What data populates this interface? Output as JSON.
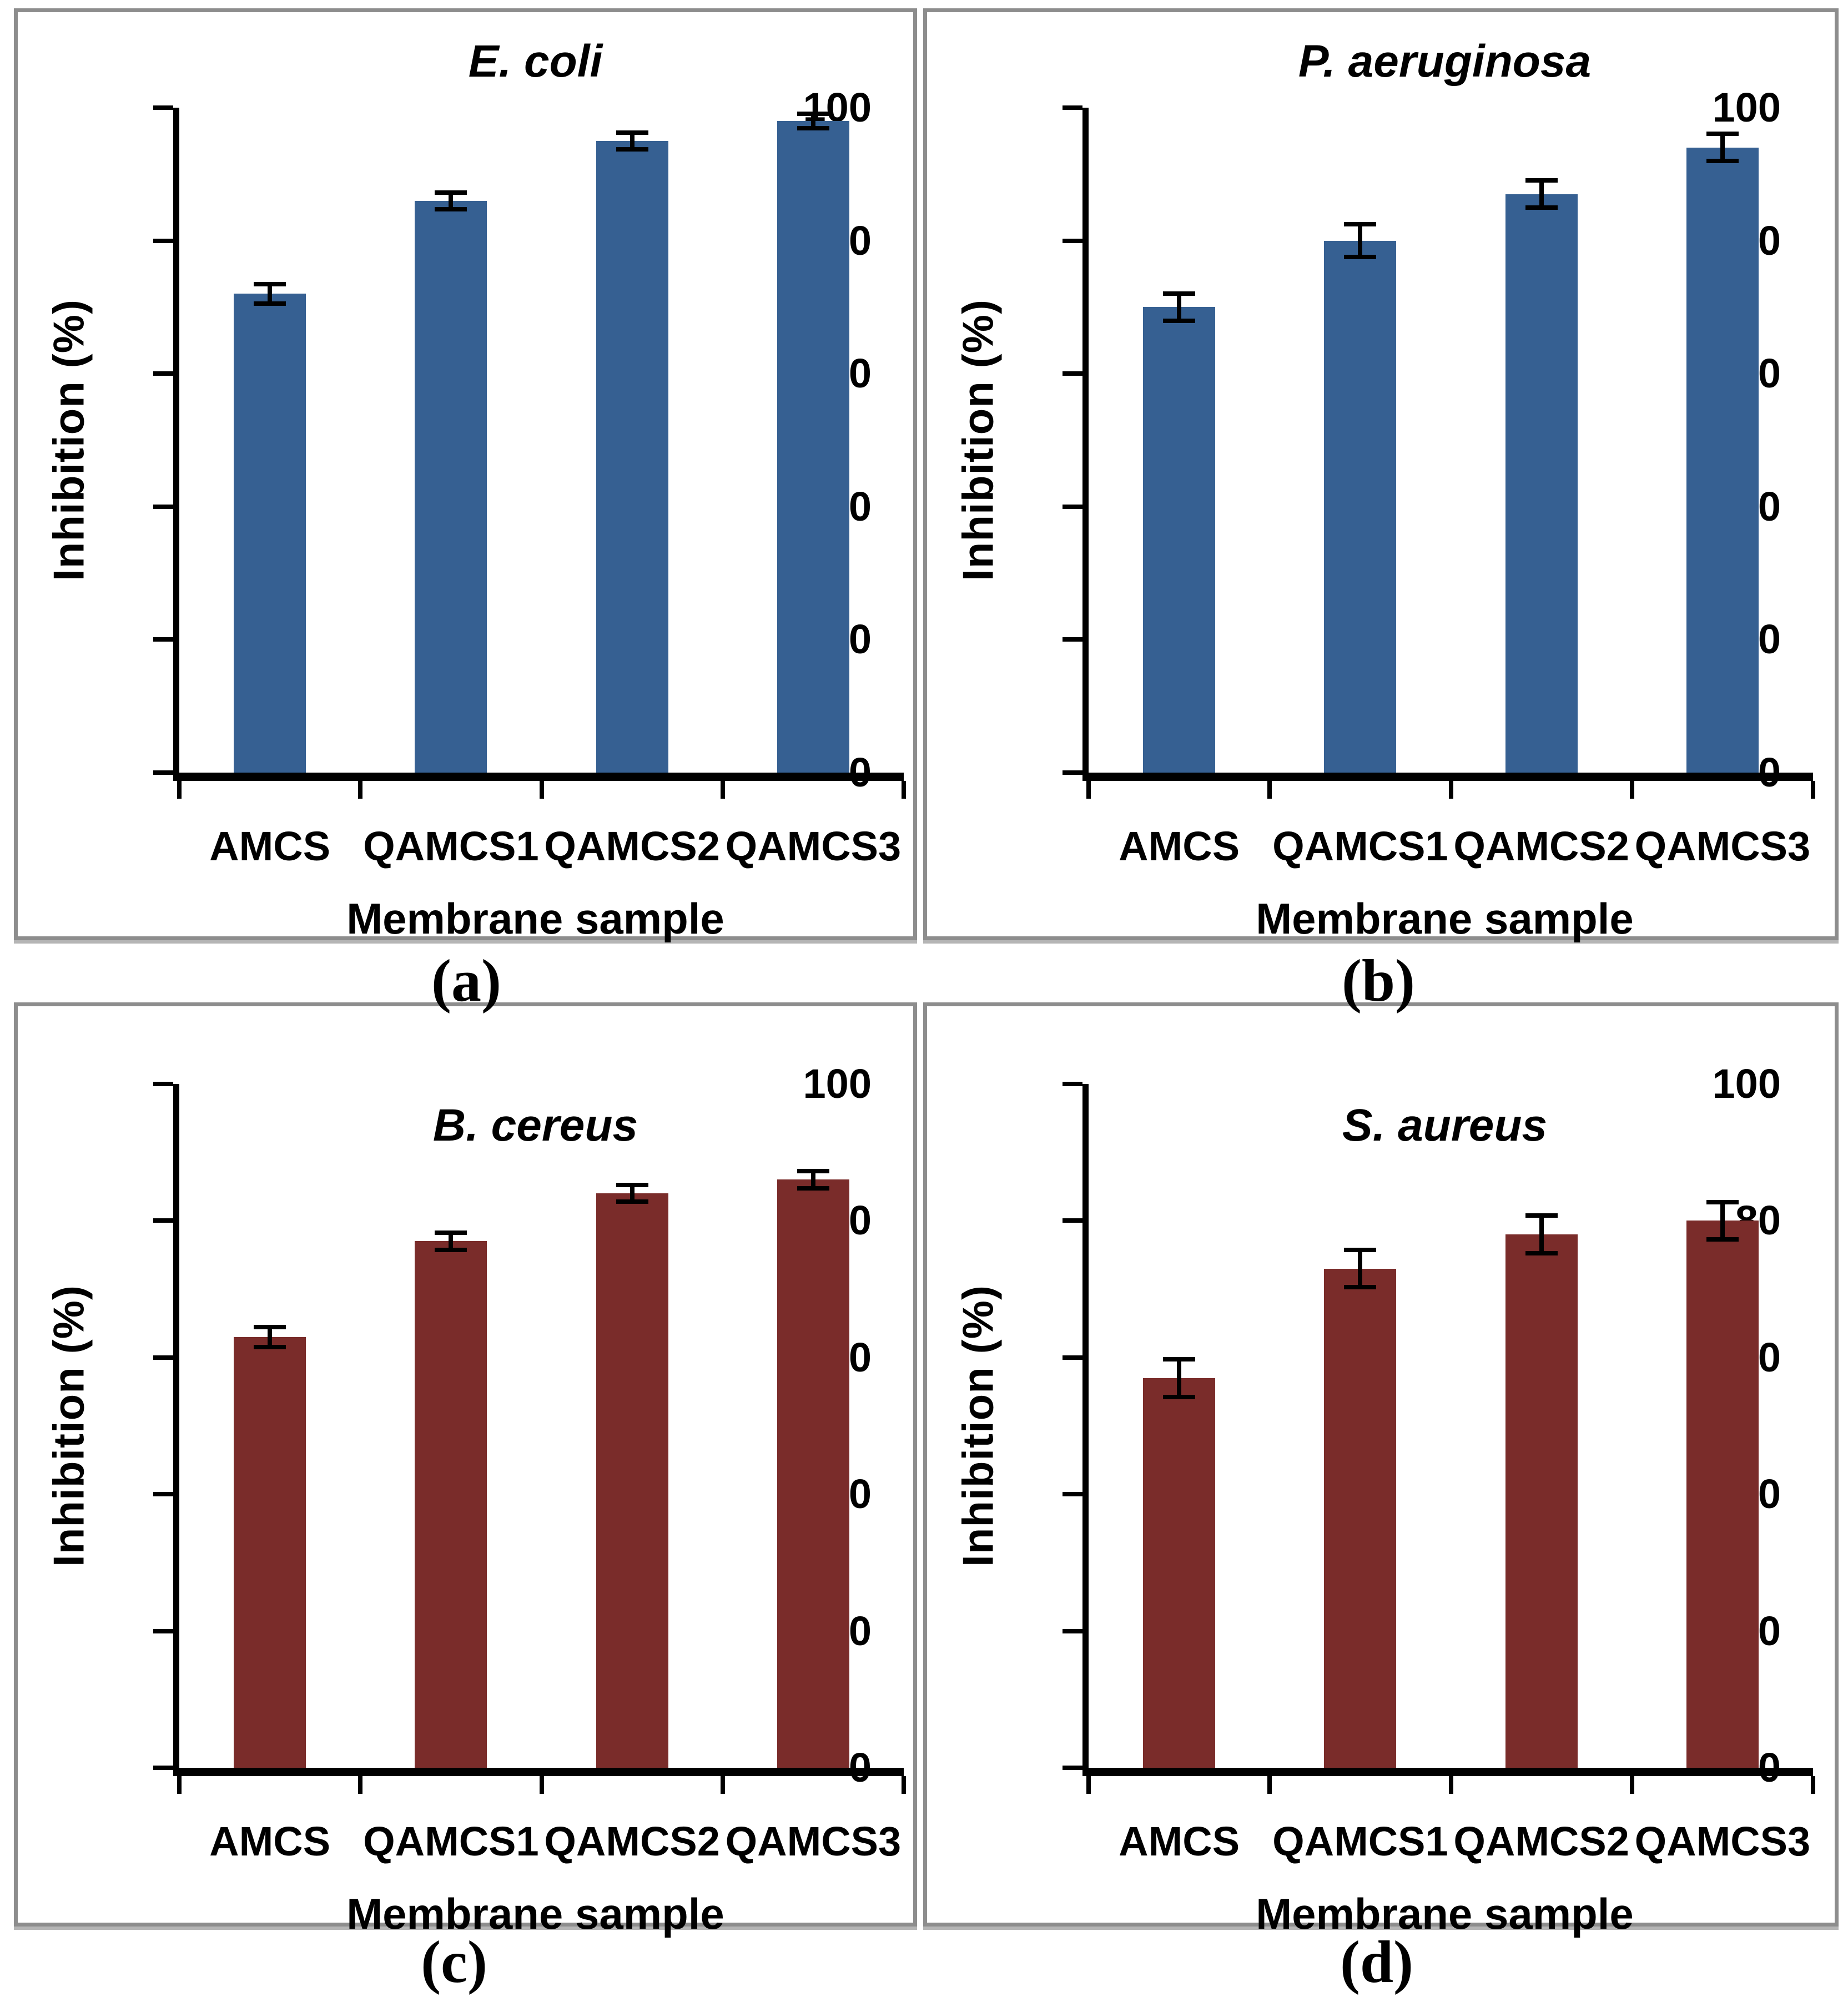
{
  "figure": {
    "background": "#ffffff",
    "panel_border_color": "#8d8d8d",
    "axis_color": "#000000",
    "blue": "#366092",
    "dark_red": "#7a2c2a"
  },
  "chart_data": [
    {
      "type": "bar",
      "panel": "a",
      "caption": "(a)",
      "title": "E. coli",
      "categories": [
        "AMCS",
        "QAMCS1",
        "QAMCS2",
        "QAMCS3"
      ],
      "values": [
        72,
        86,
        95,
        98
      ],
      "error_bars": [
        1.2,
        1.0,
        1.0,
        0.8
      ],
      "xlabel": "Membrane sample",
      "ylabel": "Inhibition (%)",
      "ylim": [
        0,
        100
      ],
      "yticks": [
        0,
        20,
        40,
        60,
        80,
        100
      ],
      "bar_color": "#366092",
      "grid": false,
      "legend": "none"
    },
    {
      "type": "bar",
      "panel": "b",
      "caption": "(b)",
      "title": "P. aeruginosa",
      "categories": [
        "AMCS",
        "QAMCS1",
        "QAMCS2",
        "QAMCS3"
      ],
      "values": [
        70,
        80,
        87,
        94
      ],
      "error_bars": [
        1.8,
        2.2,
        1.8,
        1.8
      ],
      "xlabel": "Membrane sample",
      "ylabel": "Inhibition (%)",
      "ylim": [
        0,
        100
      ],
      "yticks": [
        0,
        20,
        40,
        60,
        80,
        100
      ],
      "bar_color": "#366092",
      "grid": false,
      "legend": "none"
    },
    {
      "type": "bar",
      "panel": "c",
      "caption": "(c)",
      "title": "B. cereus",
      "categories": [
        "AMCS",
        "QAMCS1",
        "QAMCS2",
        "QAMCS3"
      ],
      "values": [
        63,
        77,
        84,
        86
      ],
      "error_bars": [
        1.2,
        1.0,
        1.0,
        1.0
      ],
      "xlabel": "Membrane sample",
      "ylabel": "Inhibition (%)",
      "ylim": [
        0,
        100
      ],
      "yticks": [
        0,
        20,
        40,
        60,
        80,
        100
      ],
      "bar_color": "#7a2c2a",
      "grid": false,
      "legend": "none"
    },
    {
      "type": "bar",
      "panel": "d",
      "caption": "(d)",
      "title": "S. aureus",
      "categories": [
        "AMCS",
        "QAMCS1",
        "QAMCS2",
        "QAMCS3"
      ],
      "values": [
        57,
        73,
        78,
        80
      ],
      "error_bars": [
        2.5,
        2.5,
        2.5,
        2.5
      ],
      "xlabel": "Membrane sample",
      "ylabel": "Inhibition (%)",
      "ylim": [
        0,
        100
      ],
      "yticks": [
        0,
        20,
        40,
        60,
        80,
        100
      ],
      "bar_color": "#7a2c2a",
      "grid": false,
      "legend": "none"
    }
  ]
}
